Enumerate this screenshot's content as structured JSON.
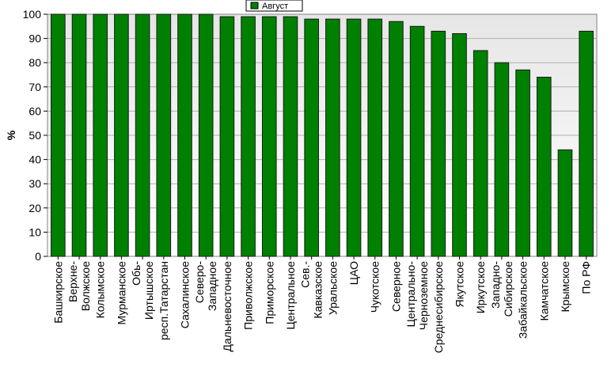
{
  "chart_data": {
    "type": "bar",
    "ylabel": "%",
    "ylim": [
      0,
      100
    ],
    "yticks": [
      0,
      10,
      20,
      30,
      40,
      50,
      60,
      70,
      80,
      90,
      100
    ],
    "grid": true,
    "legend_position": "top-center",
    "colors": {
      "bar": "#008000",
      "bar_edge": "#1a1a1a",
      "plot_bg_top": "#e6e6e6",
      "plot_bg_bottom": "#ffffff",
      "grid": "#b0b0b0"
    },
    "categories": [
      "Башкирское",
      "Верхне-Волжское",
      "Колымское",
      "Мурманское",
      "Обь-Иртышское",
      "респ.Татарстан",
      "Сахалинское",
      "Северо-Западное",
      "Дальневосточное",
      "Приволжское",
      "Приморское",
      "Центральное",
      "Сев.-Кавказское",
      "Уральское",
      "ЦАО",
      "Чукотское",
      "Северное",
      "Центрально-Черноземное",
      "Среднесибирское",
      "Якутское",
      "Иркутское",
      "Западно-Сибирское",
      "Забайкальское",
      "Камчатское",
      "Крымское",
      "По РФ"
    ],
    "category_lines": [
      [
        "Башкирское"
      ],
      [
        "Верхне-",
        "Волжское"
      ],
      [
        "Колымское"
      ],
      [
        "Мурманское"
      ],
      [
        "Обь-",
        "Иртышское"
      ],
      [
        "респ.Татарстан"
      ],
      [
        "Сахалинское"
      ],
      [
        "Северо-",
        "Западное"
      ],
      [
        "Дальневосточное"
      ],
      [
        "Приволжское"
      ],
      [
        "Приморское"
      ],
      [
        "Центральное"
      ],
      [
        "Сев.-",
        "Кавказское"
      ],
      [
        "Уральское"
      ],
      [
        "ЦАО"
      ],
      [
        "Чукотское"
      ],
      [
        "Северное"
      ],
      [
        "Центрально-",
        "Черноземное"
      ],
      [
        "Среднесибирское"
      ],
      [
        "Якутское"
      ],
      [
        "Иркутское"
      ],
      [
        "Западно-",
        "Сибирское"
      ],
      [
        "Забайкальское"
      ],
      [
        "Камчатское"
      ],
      [
        "Крымское"
      ],
      [
        "По РФ"
      ]
    ],
    "series": [
      {
        "name": "Август",
        "values": [
          100,
          100,
          100,
          100,
          100,
          100,
          100,
          100,
          99,
          99,
          99,
          99,
          98,
          98,
          98,
          98,
          97,
          95,
          93,
          92,
          85,
          80,
          77,
          74,
          44,
          93
        ]
      }
    ]
  }
}
